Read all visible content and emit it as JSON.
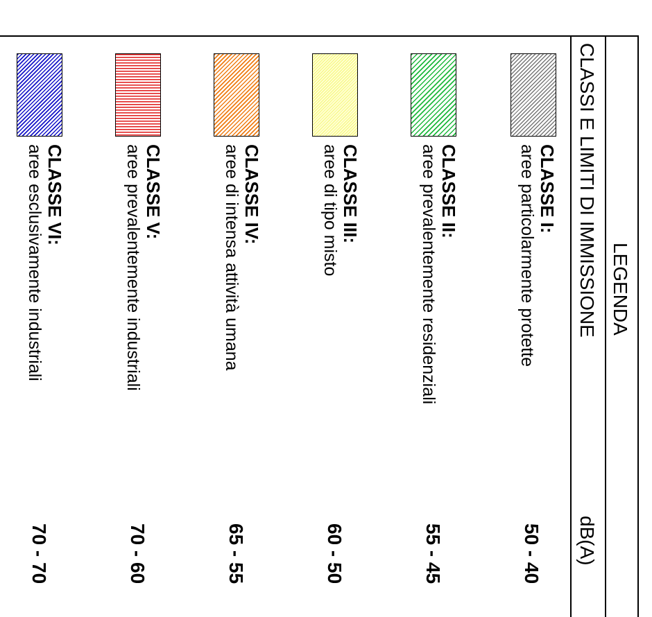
{
  "legend": {
    "title": "LEGENDA",
    "subtitle": "CLASSI E LIMITI DI IMMISSIONE",
    "unit": "dB(A)"
  },
  "classes": [
    {
      "name": "CLASSE I:",
      "description": "aree particolarmente protette",
      "limits": "50 - 40",
      "pattern": "diagonal-hatch",
      "color": "#777777"
    },
    {
      "name": "CLASSE II:",
      "description": "aree prevalentemente residenziali",
      "limits": "55 - 45",
      "pattern": "diagonal-hatch",
      "color": "#1db83b"
    },
    {
      "name": "CLASSE III:",
      "description": "aree di tipo misto",
      "limits": "60 - 50",
      "pattern": "fine-hatch",
      "color": "#f6f77a"
    },
    {
      "name": "CLASSE IV:",
      "description": "aree di intensa attività umana",
      "limits": "65 - 55",
      "pattern": "diagonal-hatch",
      "color": "#f07c12"
    },
    {
      "name": "CLASSE V:",
      "description": "aree prevalentemente industriali",
      "limits": "70 - 60",
      "pattern": "horizontal-lines",
      "color": "#e01818"
    },
    {
      "name": "CLASSE VI:",
      "description": "aree esclusivamente industriali",
      "limits": "70 - 70",
      "pattern": "diagonal-hatch",
      "color": "#1414c8"
    }
  ]
}
